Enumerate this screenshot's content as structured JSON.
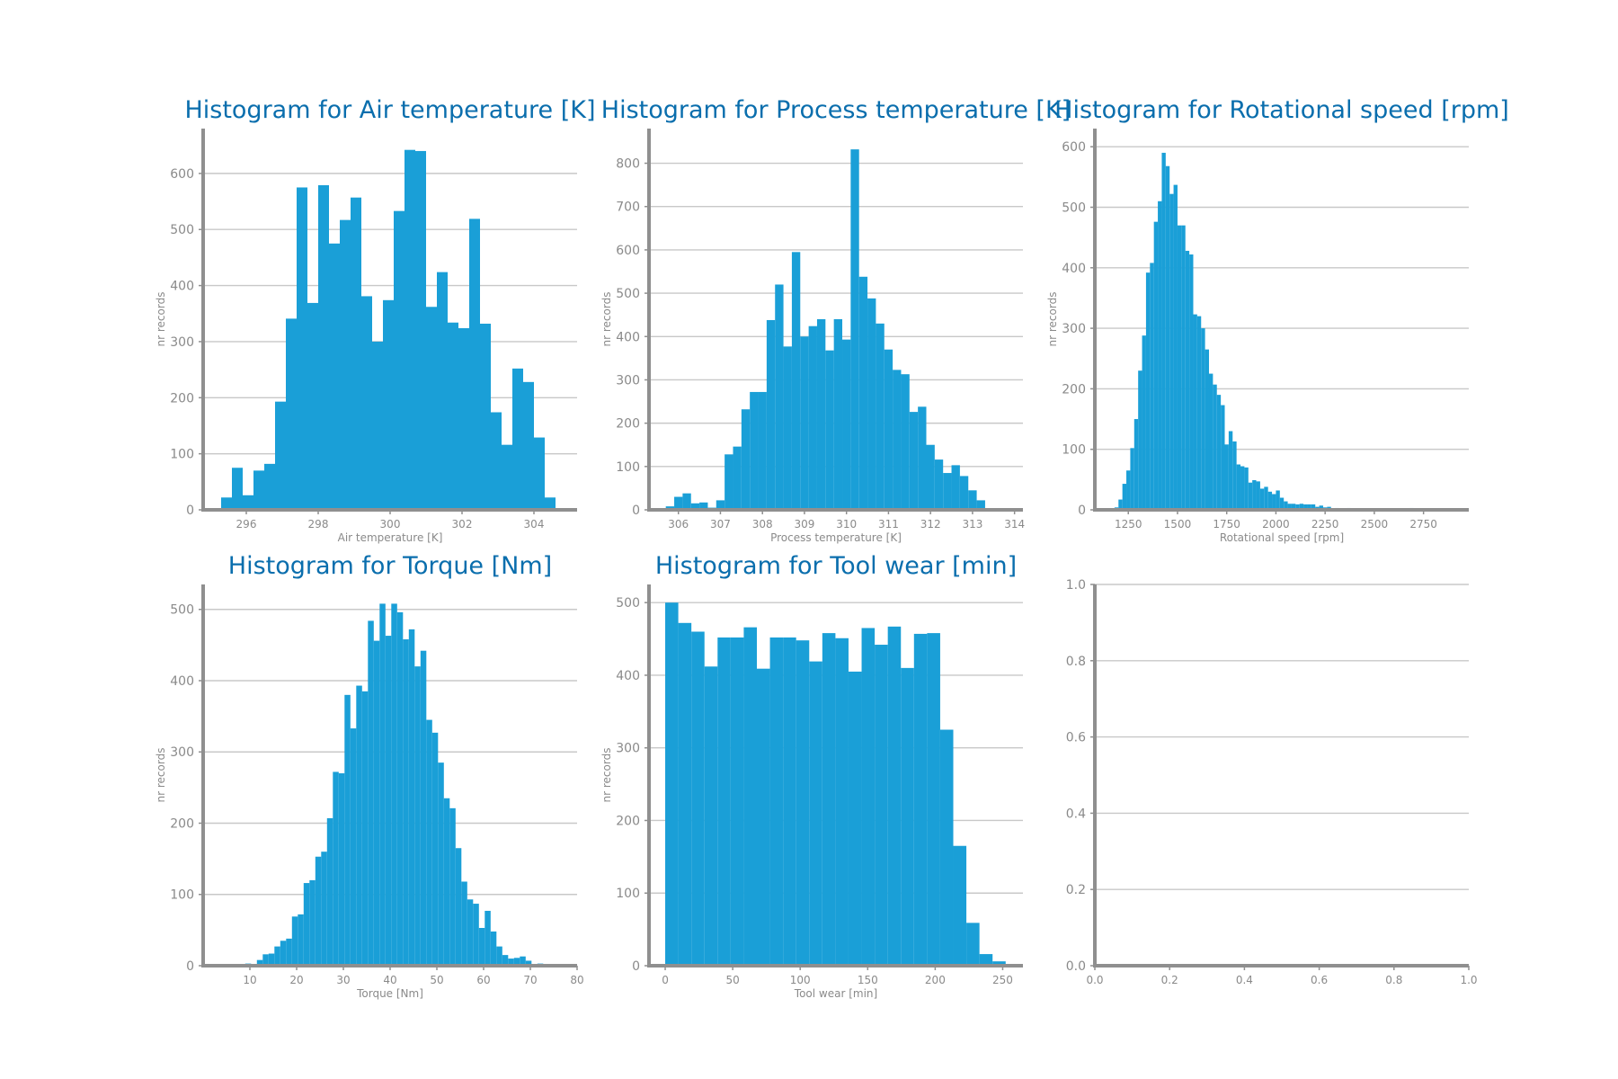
{
  "style": {
    "bar_color": "#1a9fd7",
    "title_color": "#0a6ead",
    "axis_color": "#8f8f8f",
    "grid_color": "#c8c8c8",
    "text_color": "#8a8a8a"
  },
  "chart_data": [
    {
      "type": "bar",
      "title": "Histogram for Air temperature [K]",
      "xlabel": "Air temperature [K]",
      "ylabel": "nr records",
      "xlim": [
        294.8,
        305.2
      ],
      "ylim": [
        0,
        680
      ],
      "xticks": [
        296,
        298,
        300,
        302,
        304
      ],
      "yticks": [
        0,
        100,
        200,
        300,
        400,
        500,
        600
      ],
      "grid": true,
      "bins": [
        [
          295.3,
          295.6,
          22
        ],
        [
          295.6,
          295.9,
          75
        ],
        [
          295.9,
          296.2,
          26
        ],
        [
          296.2,
          296.5,
          70
        ],
        [
          296.5,
          296.8,
          82
        ],
        [
          296.8,
          297.1,
          193
        ],
        [
          297.1,
          297.4,
          341
        ],
        [
          297.4,
          297.7,
          575
        ],
        [
          297.7,
          298.0,
          369
        ],
        [
          298.0,
          298.3,
          579
        ],
        [
          298.3,
          298.6,
          475
        ],
        [
          298.6,
          298.9,
          517
        ],
        [
          298.9,
          299.2,
          557
        ],
        [
          299.2,
          299.5,
          381
        ],
        [
          299.5,
          299.8,
          300
        ],
        [
          299.8,
          300.1,
          374
        ],
        [
          300.1,
          300.4,
          533
        ],
        [
          300.4,
          300.7,
          642
        ],
        [
          300.7,
          301.0,
          640
        ],
        [
          301.0,
          301.3,
          362
        ],
        [
          301.3,
          301.6,
          424
        ],
        [
          301.6,
          301.9,
          334
        ],
        [
          301.9,
          302.2,
          324
        ],
        [
          302.2,
          302.5,
          519
        ],
        [
          302.5,
          302.8,
          332
        ],
        [
          302.8,
          303.1,
          174
        ],
        [
          303.1,
          303.4,
          116
        ],
        [
          303.4,
          303.7,
          252
        ],
        [
          303.7,
          304.0,
          228
        ],
        [
          304.0,
          304.3,
          129
        ],
        [
          304.3,
          304.6,
          22
        ]
      ]
    },
    {
      "type": "bar",
      "title": "Histogram for Process temperature [K]",
      "xlabel": "Process temperature [K]",
      "ylabel": "nr records",
      "xlim": [
        305.3,
        314.2
      ],
      "ylim": [
        0,
        880
      ],
      "xticks": [
        306,
        307,
        308,
        309,
        310,
        311,
        312,
        313,
        314
      ],
      "yticks": [
        0,
        100,
        200,
        300,
        400,
        500,
        600,
        700,
        800
      ],
      "grid": true,
      "bins": [
        [
          305.7,
          305.9,
          8
        ],
        [
          305.9,
          306.1,
          30
        ],
        [
          306.1,
          306.3,
          38
        ],
        [
          306.3,
          306.5,
          15
        ],
        [
          306.5,
          306.7,
          17
        ],
        [
          306.7,
          306.9,
          5
        ],
        [
          306.9,
          307.1,
          22
        ],
        [
          307.1,
          307.3,
          128
        ],
        [
          307.3,
          307.5,
          146
        ],
        [
          307.5,
          307.7,
          232
        ],
        [
          307.7,
          307.9,
          272
        ],
        [
          307.9,
          308.1,
          272
        ],
        [
          308.1,
          308.3,
          438
        ],
        [
          308.3,
          308.5,
          520
        ],
        [
          308.5,
          308.7,
          377
        ],
        [
          308.7,
          308.9,
          595
        ],
        [
          308.9,
          309.1,
          400
        ],
        [
          309.1,
          309.3,
          424
        ],
        [
          309.3,
          309.5,
          440
        ],
        [
          309.5,
          309.7,
          368
        ],
        [
          309.7,
          309.9,
          440
        ],
        [
          309.9,
          310.1,
          393
        ],
        [
          310.1,
          310.3,
          832
        ],
        [
          310.3,
          310.5,
          538
        ],
        [
          310.5,
          310.7,
          488
        ],
        [
          310.7,
          310.9,
          430
        ],
        [
          310.9,
          311.1,
          370
        ],
        [
          311.1,
          311.3,
          323
        ],
        [
          311.3,
          311.5,
          313
        ],
        [
          311.5,
          311.7,
          226
        ],
        [
          311.7,
          311.9,
          238
        ],
        [
          311.9,
          312.1,
          150
        ],
        [
          312.1,
          312.3,
          116
        ],
        [
          312.3,
          312.5,
          85
        ],
        [
          312.5,
          312.7,
          103
        ],
        [
          312.7,
          312.9,
          78
        ],
        [
          312.9,
          313.1,
          45
        ],
        [
          313.1,
          313.3,
          22
        ],
        [
          313.3,
          313.5,
          3
        ]
      ]
    },
    {
      "type": "bar",
      "title": "Histogram for Rotational speed [rpm]",
      "xlabel": "Rotational speed [rpm]",
      "ylabel": "nr records",
      "xlim": [
        1080,
        2980
      ],
      "ylim": [
        0,
        630
      ],
      "xticks": [
        1250,
        1500,
        1750,
        2000,
        2250,
        2500,
        2750
      ],
      "yticks": [
        0,
        100,
        200,
        300,
        400,
        500,
        600
      ],
      "grid": true,
      "bins": [
        [
          1160,
          1180,
          2
        ],
        [
          1180,
          1200,
          4
        ],
        [
          1200,
          1220,
          17
        ],
        [
          1220,
          1240,
          43
        ],
        [
          1240,
          1260,
          65
        ],
        [
          1260,
          1280,
          102
        ],
        [
          1280,
          1300,
          150
        ],
        [
          1300,
          1320,
          230
        ],
        [
          1320,
          1340,
          288
        ],
        [
          1340,
          1360,
          392
        ],
        [
          1360,
          1380,
          408
        ],
        [
          1380,
          1400,
          476
        ],
        [
          1400,
          1420,
          510
        ],
        [
          1420,
          1440,
          590
        ],
        [
          1440,
          1460,
          568
        ],
        [
          1460,
          1480,
          522
        ],
        [
          1480,
          1500,
          537
        ],
        [
          1500,
          1520,
          470
        ],
        [
          1520,
          1540,
          470
        ],
        [
          1540,
          1560,
          428
        ],
        [
          1560,
          1580,
          422
        ],
        [
          1580,
          1600,
          323
        ],
        [
          1600,
          1620,
          320
        ],
        [
          1620,
          1640,
          300
        ],
        [
          1640,
          1660,
          265
        ],
        [
          1660,
          1680,
          225
        ],
        [
          1680,
          1700,
          207
        ],
        [
          1700,
          1720,
          190
        ],
        [
          1720,
          1740,
          173
        ],
        [
          1740,
          1760,
          108
        ],
        [
          1760,
          1780,
          130
        ],
        [
          1780,
          1800,
          113
        ],
        [
          1800,
          1820,
          75
        ],
        [
          1820,
          1840,
          72
        ],
        [
          1840,
          1860,
          70
        ],
        [
          1860,
          1880,
          45
        ],
        [
          1880,
          1900,
          49
        ],
        [
          1900,
          1920,
          47
        ],
        [
          1920,
          1940,
          35
        ],
        [
          1940,
          1960,
          38
        ],
        [
          1960,
          1980,
          30
        ],
        [
          1980,
          2000,
          26
        ],
        [
          2000,
          2020,
          32
        ],
        [
          2020,
          2040,
          20
        ],
        [
          2040,
          2060,
          14
        ],
        [
          2060,
          2080,
          10
        ],
        [
          2080,
          2100,
          10
        ],
        [
          2100,
          2120,
          9
        ],
        [
          2120,
          2140,
          10
        ],
        [
          2140,
          2160,
          9
        ],
        [
          2160,
          2180,
          9
        ],
        [
          2180,
          2200,
          9
        ],
        [
          2200,
          2220,
          5
        ],
        [
          2220,
          2240,
          7
        ],
        [
          2240,
          2260,
          4
        ],
        [
          2260,
          2280,
          5
        ],
        [
          2280,
          2300,
          2
        ],
        [
          2300,
          2320,
          3
        ],
        [
          2320,
          2340,
          2
        ],
        [
          2340,
          2360,
          2
        ],
        [
          2360,
          2380,
          3
        ],
        [
          2380,
          2400,
          2
        ],
        [
          2400,
          2420,
          1
        ],
        [
          2420,
          2440,
          1
        ],
        [
          2440,
          2460,
          1
        ],
        [
          2460,
          2480,
          2
        ],
        [
          2480,
          2500,
          1
        ],
        [
          2500,
          2520,
          1
        ],
        [
          2520,
          2540,
          2
        ],
        [
          2540,
          2560,
          1
        ],
        [
          2560,
          2580,
          1
        ],
        [
          2580,
          2600,
          1
        ],
        [
          2600,
          2620,
          1
        ],
        [
          2620,
          2640,
          2
        ],
        [
          2640,
          2660,
          1
        ],
        [
          2660,
          2680,
          1
        ],
        [
          2680,
          2700,
          3
        ],
        [
          2700,
          2720,
          1
        ],
        [
          2720,
          2740,
          1
        ],
        [
          2740,
          2760,
          1
        ],
        [
          2760,
          2780,
          1
        ],
        [
          2780,
          2800,
          1
        ],
        [
          2800,
          2820,
          1
        ],
        [
          2820,
          2840,
          1
        ],
        [
          2840,
          2860,
          1
        ],
        [
          2860,
          2880,
          1
        ]
      ]
    },
    {
      "type": "bar",
      "title": "Histogram for Torque [Nm]",
      "xlabel": "Torque [Nm]",
      "ylabel": "nr records",
      "xlim": [
        0,
        80
      ],
      "ylim": [
        0,
        535
      ],
      "xticks": [
        10,
        20,
        30,
        40,
        50,
        60,
        70,
        80
      ],
      "yticks": [
        0,
        100,
        200,
        300,
        400,
        500
      ],
      "grid": true,
      "bins": [
        [
          4.0,
          5.25,
          1
        ],
        [
          5.25,
          6.5,
          0
        ],
        [
          6.5,
          7.75,
          1
        ],
        [
          7.75,
          9.0,
          2
        ],
        [
          9.0,
          10.25,
          3
        ],
        [
          10.25,
          11.5,
          2
        ],
        [
          11.5,
          12.75,
          8
        ],
        [
          12.75,
          14.0,
          16
        ],
        [
          14.0,
          15.25,
          17
        ],
        [
          15.25,
          16.5,
          27
        ],
        [
          16.5,
          17.75,
          35
        ],
        [
          17.75,
          19.0,
          38
        ],
        [
          19.0,
          20.25,
          69
        ],
        [
          20.25,
          21.5,
          72
        ],
        [
          21.5,
          22.75,
          116
        ],
        [
          22.75,
          24.0,
          120
        ],
        [
          24.0,
          25.25,
          153
        ],
        [
          25.25,
          26.5,
          160
        ],
        [
          26.5,
          27.75,
          207
        ],
        [
          27.75,
          29.0,
          272
        ],
        [
          29.0,
          30.25,
          270
        ],
        [
          30.25,
          31.5,
          380
        ],
        [
          31.5,
          32.75,
          333
        ],
        [
          32.75,
          34.0,
          393
        ],
        [
          34.0,
          35.25,
          385
        ],
        [
          35.25,
          36.5,
          484
        ],
        [
          36.5,
          37.75,
          456
        ],
        [
          37.75,
          39.0,
          508
        ],
        [
          39.0,
          40.25,
          463
        ],
        [
          40.25,
          41.5,
          508
        ],
        [
          41.5,
          42.75,
          496
        ],
        [
          42.75,
          44.0,
          458
        ],
        [
          44.0,
          45.25,
          472
        ],
        [
          45.25,
          46.5,
          420
        ],
        [
          46.5,
          47.75,
          442
        ],
        [
          47.75,
          49.0,
          345
        ],
        [
          49.0,
          50.25,
          327
        ],
        [
          50.25,
          51.5,
          285
        ],
        [
          51.5,
          52.75,
          235
        ],
        [
          52.75,
          54.0,
          221
        ],
        [
          54.0,
          55.25,
          165
        ],
        [
          55.25,
          56.5,
          118
        ],
        [
          56.5,
          57.75,
          93
        ],
        [
          57.75,
          59.0,
          87
        ],
        [
          59.0,
          60.25,
          53
        ],
        [
          60.25,
          61.5,
          77
        ],
        [
          61.5,
          62.75,
          48
        ],
        [
          62.75,
          64.0,
          27
        ],
        [
          64.0,
          65.25,
          15
        ],
        [
          65.25,
          66.5,
          10
        ],
        [
          66.5,
          67.75,
          11
        ],
        [
          67.75,
          69.0,
          13
        ],
        [
          69.0,
          70.25,
          7
        ],
        [
          70.25,
          71.5,
          2
        ],
        [
          71.5,
          72.75,
          3
        ],
        [
          72.75,
          74.0,
          1
        ],
        [
          74.0,
          75.25,
          1
        ]
      ]
    },
    {
      "type": "bar",
      "title": "Histogram for Tool wear [min]",
      "xlabel": "Tool wear [min]",
      "ylabel": "nr records",
      "xlim": [
        -12,
        265
      ],
      "ylim": [
        0,
        525
      ],
      "xticks": [
        0,
        50,
        100,
        150,
        200,
        250
      ],
      "yticks": [
        0,
        100,
        200,
        300,
        400,
        500
      ],
      "grid": true,
      "bins": [
        [
          0,
          9.7,
          500
        ],
        [
          9.7,
          19.4,
          472
        ],
        [
          19.4,
          29.1,
          460
        ],
        [
          29.1,
          38.8,
          412
        ],
        [
          38.8,
          48.5,
          452
        ],
        [
          48.5,
          58.2,
          452
        ],
        [
          58.2,
          67.9,
          466
        ],
        [
          67.9,
          77.6,
          409
        ],
        [
          77.6,
          87.3,
          452
        ],
        [
          87.3,
          97.0,
          452
        ],
        [
          97.0,
          106.7,
          448
        ],
        [
          106.7,
          116.4,
          419
        ],
        [
          116.4,
          126.1,
          458
        ],
        [
          126.1,
          135.8,
          451
        ],
        [
          135.8,
          145.5,
          405
        ],
        [
          145.5,
          155.2,
          465
        ],
        [
          155.2,
          164.9,
          442
        ],
        [
          164.9,
          174.6,
          467
        ],
        [
          174.6,
          184.3,
          410
        ],
        [
          184.3,
          194.0,
          457
        ],
        [
          194.0,
          203.7,
          458
        ],
        [
          203.7,
          213.4,
          325
        ],
        [
          213.4,
          223.1,
          165
        ],
        [
          223.1,
          232.8,
          59
        ],
        [
          232.8,
          242.5,
          16
        ],
        [
          242.5,
          252.2,
          6
        ]
      ]
    },
    {
      "type": "bar",
      "title": "",
      "xlabel": "",
      "ylabel": "",
      "xlim": [
        0,
        1
      ],
      "ylim": [
        0,
        1
      ],
      "xticks": [
        0.0,
        0.2,
        0.4,
        0.6,
        0.8,
        1.0
      ],
      "yticks": [
        0.0,
        0.2,
        0.4,
        0.6,
        0.8,
        1.0
      ],
      "tick_decimals": 1,
      "grid": true,
      "bins": []
    }
  ]
}
